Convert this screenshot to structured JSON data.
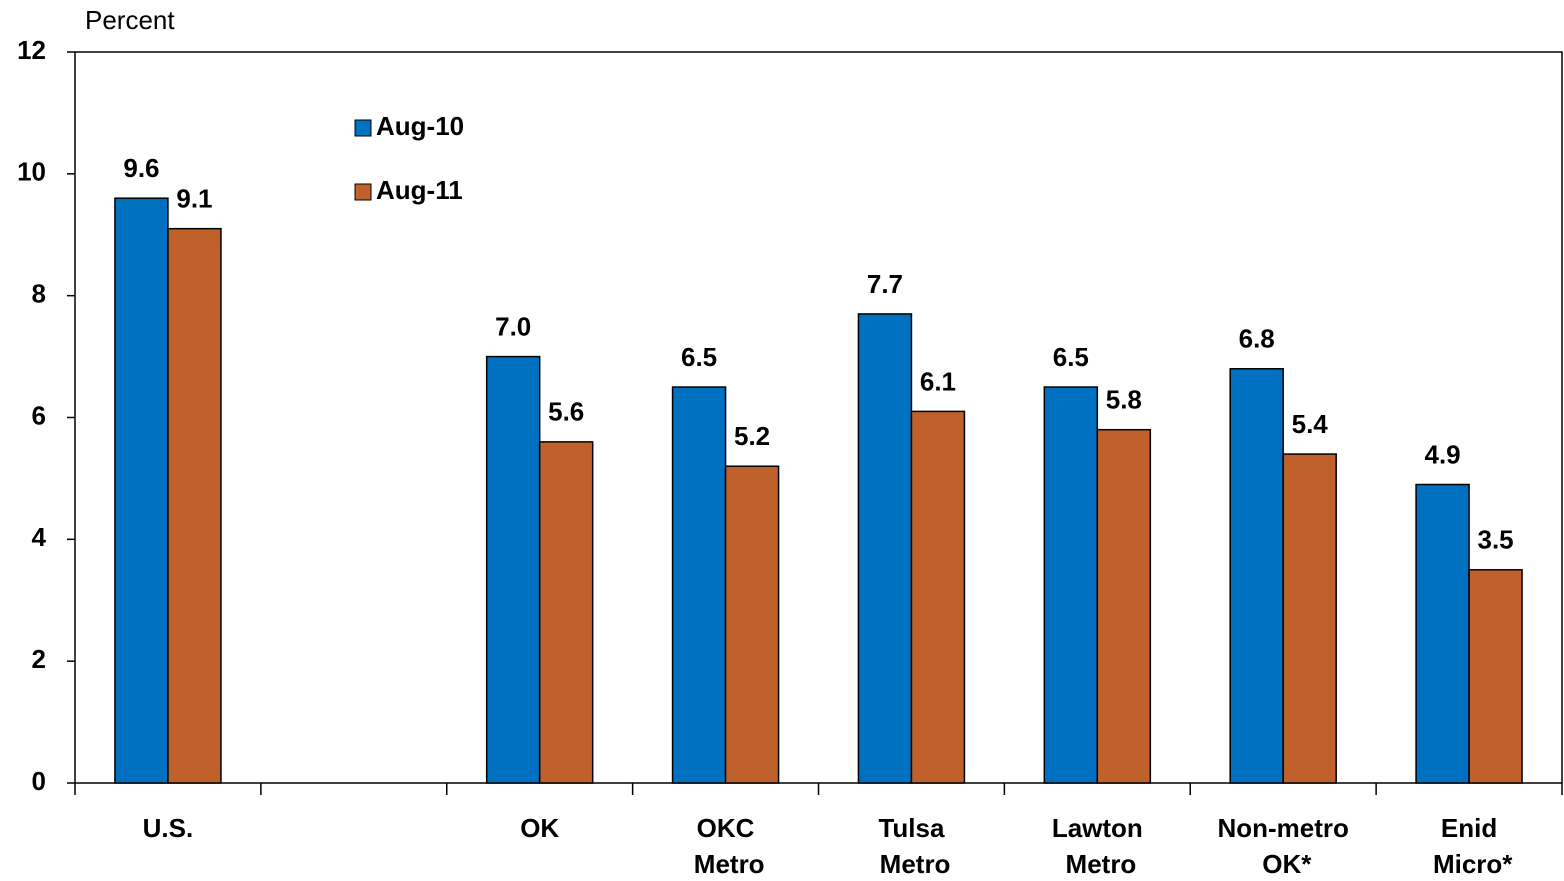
{
  "chart_data": {
    "type": "bar",
    "y_label": "Percent",
    "categories": [
      "U.S.",
      null,
      "OK",
      "OKC Metro",
      "Tulsa Metro",
      "Lawton Metro",
      "Non-metro OK*",
      "Enid Micro*"
    ],
    "series": [
      {
        "name": "Aug-10",
        "color": "#0070c0",
        "values": [
          9.6,
          null,
          7.0,
          6.5,
          7.7,
          6.5,
          6.8,
          4.9
        ],
        "value_labels": [
          "9.6",
          null,
          "7.0",
          "6.5",
          "7.7",
          "6.5",
          "6.8",
          "4.9"
        ]
      },
      {
        "name": "Aug-11",
        "color": "#c0612b",
        "values": [
          9.1,
          null,
          5.6,
          5.2,
          6.1,
          5.8,
          5.4,
          3.5
        ]
      }
    ],
    "ylim": [
      0,
      12
    ],
    "yticks": [
      0,
      2,
      4,
      6,
      8,
      10,
      12
    ],
    "grid": false
  }
}
